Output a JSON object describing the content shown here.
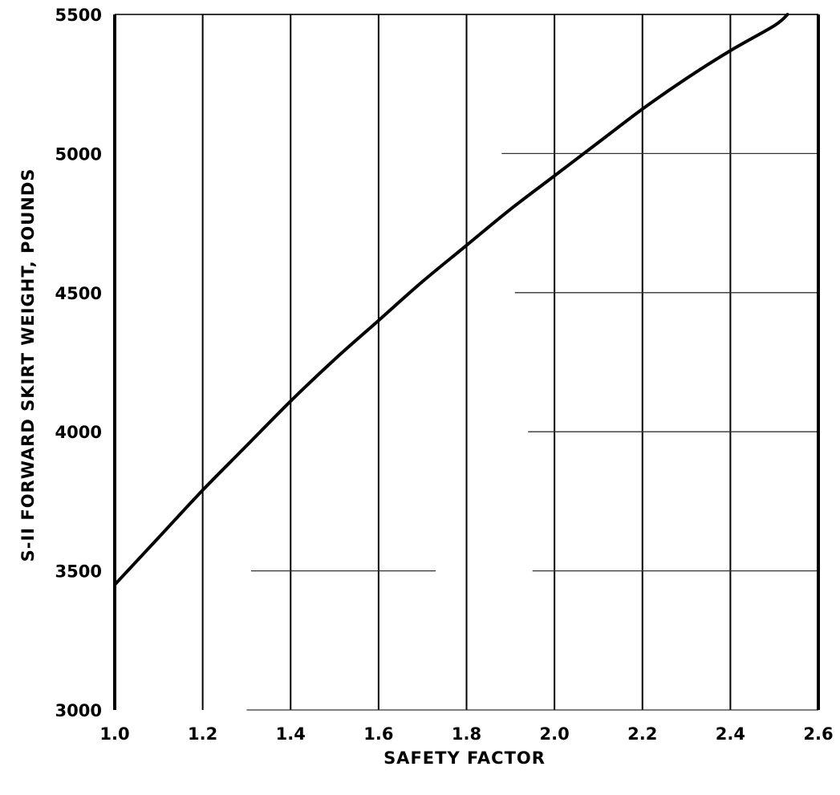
{
  "chart_data": {
    "type": "line",
    "title": "",
    "xlabel": "SAFETY FACTOR",
    "ylabel": "S-II FORWARD SKIRT WEIGHT, POUNDS",
    "xlim": [
      1.0,
      2.6
    ],
    "ylim": [
      3000,
      5500
    ],
    "x_ticks": [
      "1.0",
      "1.2",
      "1.4",
      "1.6",
      "1.8",
      "2.0",
      "2.2",
      "2.4",
      "2.6"
    ],
    "y_ticks": [
      "3000",
      "3500",
      "4000",
      "4500",
      "5000",
      "5500"
    ],
    "grid": "vertical lines at every x tick; partial horizontal lines at y ticks",
    "series": [
      {
        "x": [
          1.0,
          1.1,
          1.2,
          1.3,
          1.4,
          1.5,
          1.6,
          1.7,
          1.8,
          1.9,
          2.0,
          2.1,
          2.2,
          2.3,
          2.4,
          2.5,
          2.53
        ],
        "y": [
          3450,
          3620,
          3790,
          3950,
          4110,
          4260,
          4400,
          4540,
          4670,
          4800,
          4920,
          5040,
          5160,
          5270,
          5370,
          5460,
          5500
        ]
      }
    ]
  }
}
